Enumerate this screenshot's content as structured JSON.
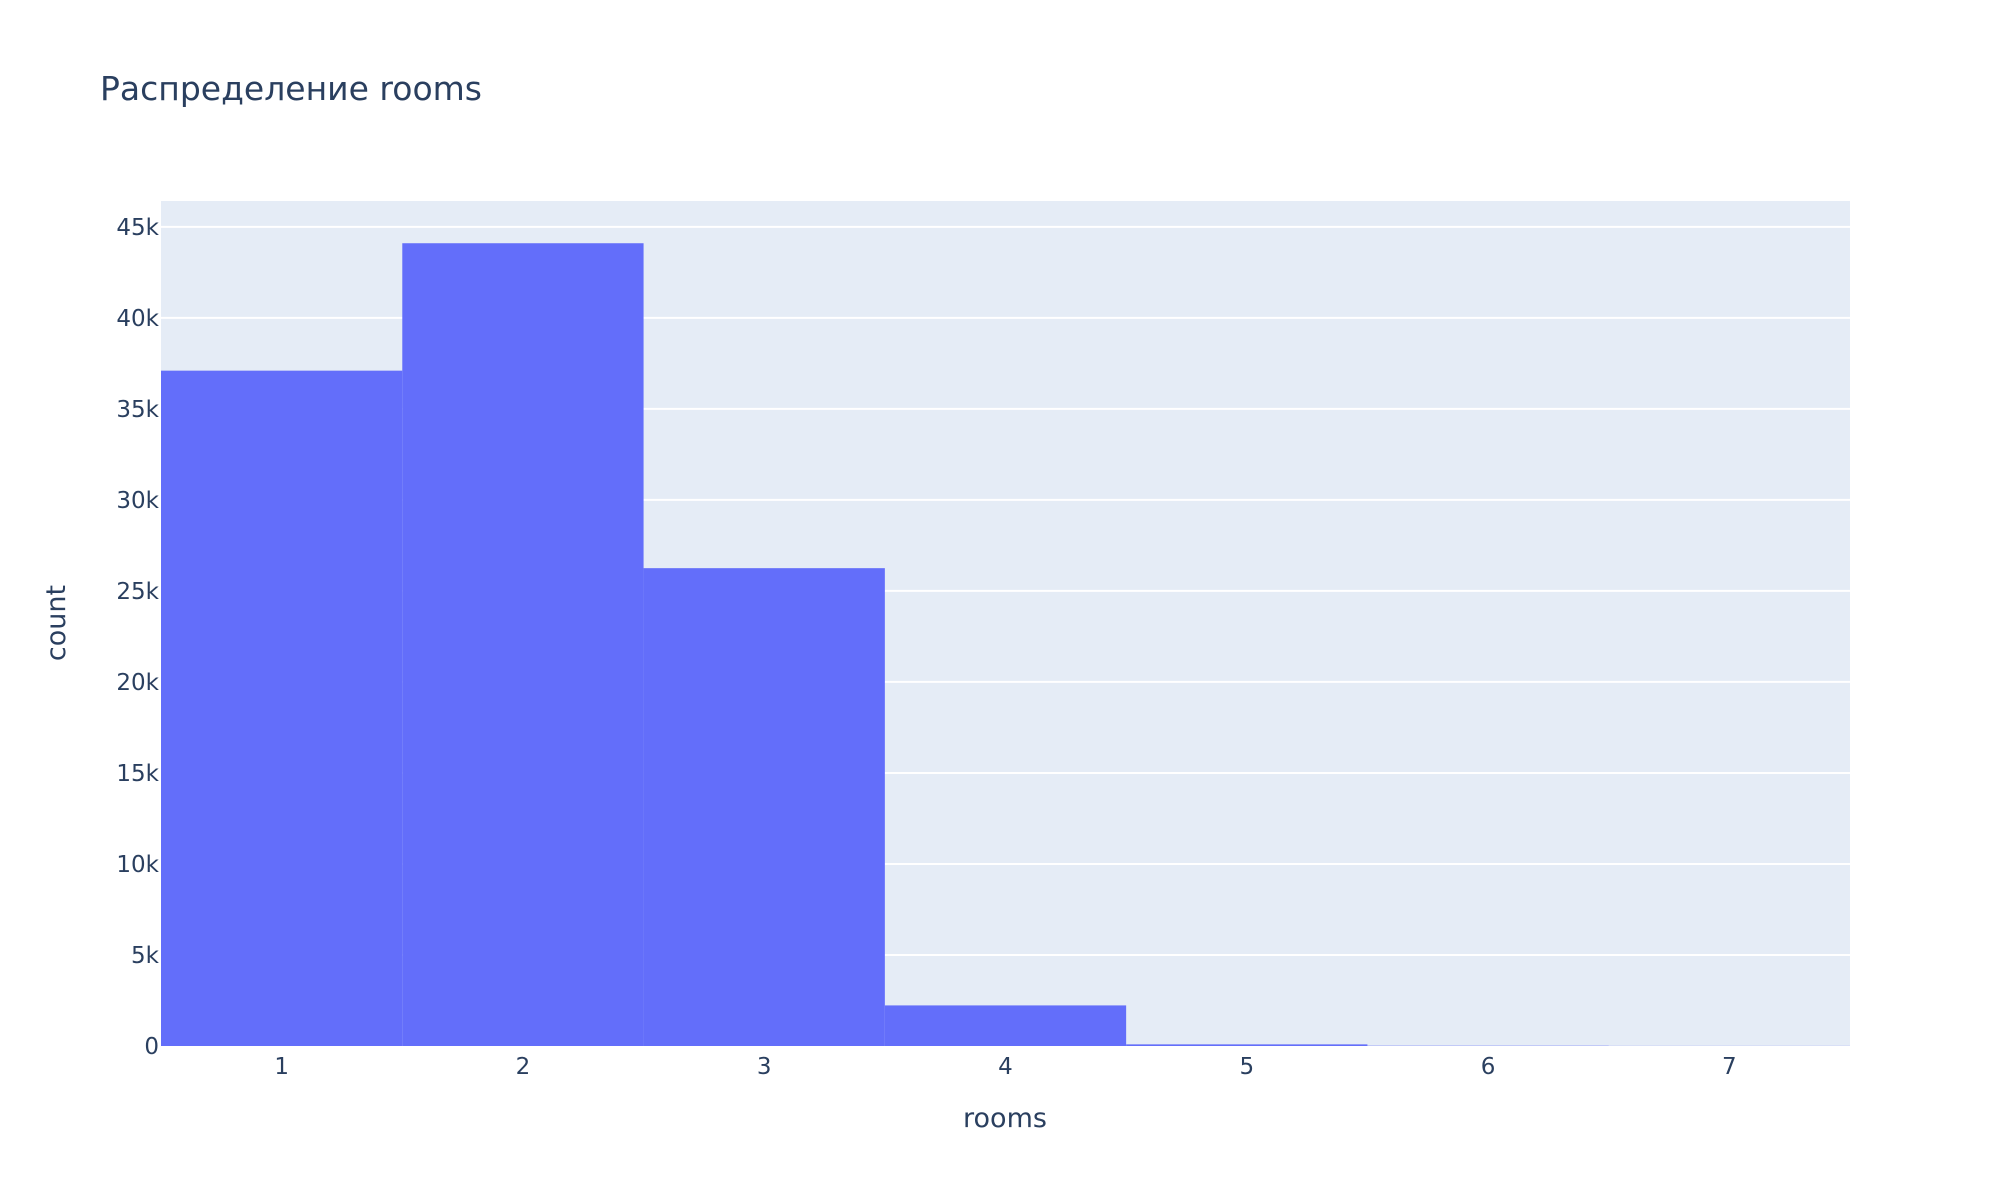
{
  "chart_data": {
    "type": "bar",
    "title": "Распределение rooms",
    "xlabel": "rooms",
    "ylabel": "count",
    "categories": [
      "1",
      "2",
      "3",
      "4",
      "5",
      "6",
      "7"
    ],
    "x": [
      1,
      2,
      3,
      4,
      5,
      6,
      7
    ],
    "values": [
      37100,
      44100,
      26250,
      2230,
      90,
      15,
      5
    ],
    "xlim": [
      0.5,
      7.5
    ],
    "ylim": [
      0,
      46420
    ],
    "yticks": [
      0,
      5000,
      10000,
      15000,
      20000,
      25000,
      30000,
      35000,
      40000,
      45000
    ],
    "ytick_labels": [
      "0",
      "5k",
      "10k",
      "15k",
      "20k",
      "25k",
      "30k",
      "35k",
      "40k",
      "45k"
    ],
    "grid": true,
    "legend": "none",
    "colors": {
      "bar": "#636efa",
      "plot_bg": "#e5ecf6",
      "grid": "#ffffff",
      "text": "#2a3f5f"
    }
  }
}
